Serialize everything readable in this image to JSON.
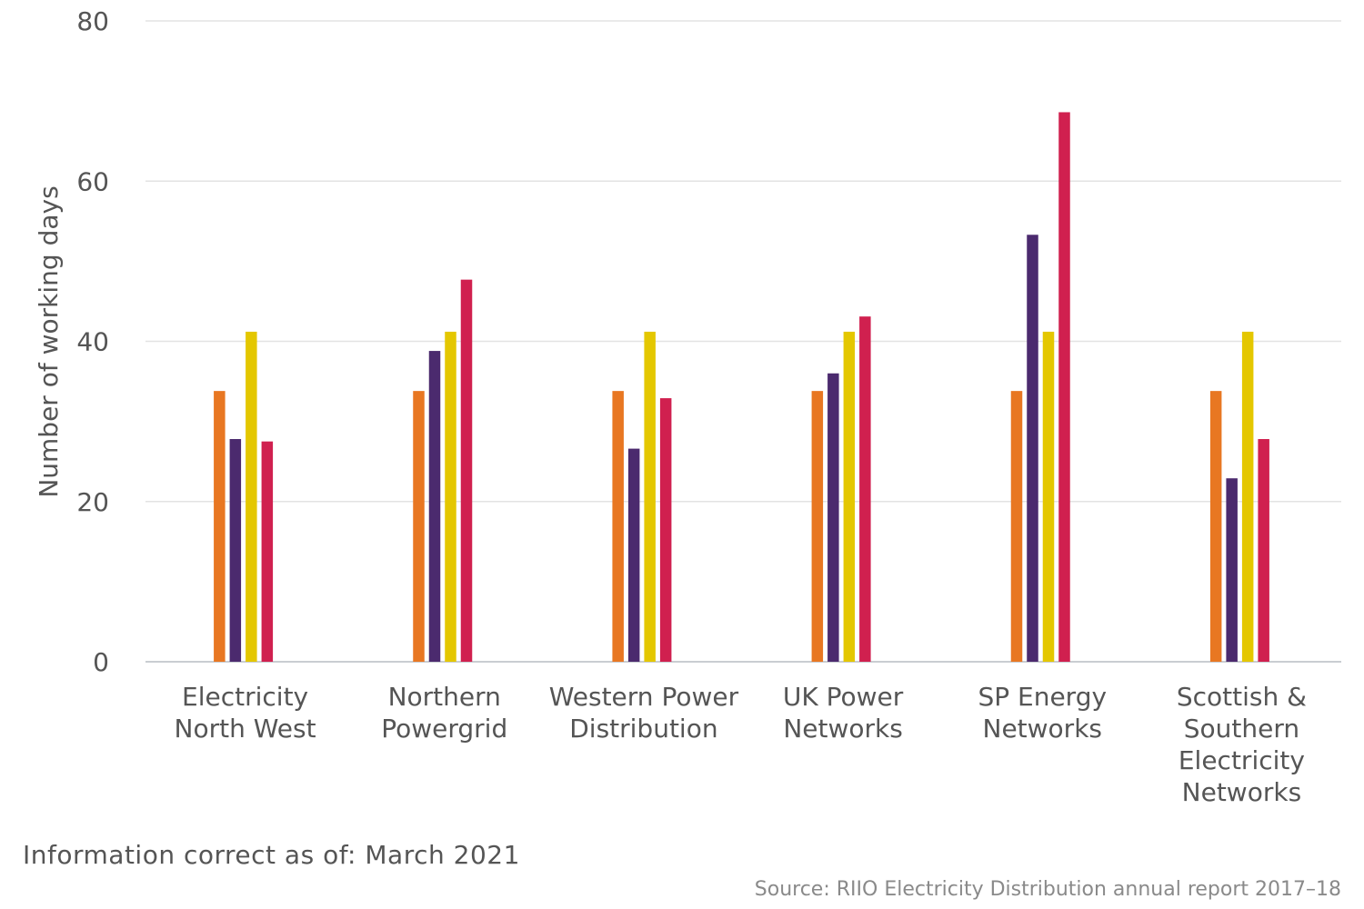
{
  "chart_data": {
    "type": "bar",
    "title": "",
    "xlabel": "",
    "ylabel": "Number of working days",
    "ylim": [
      0,
      80
    ],
    "yticks": [
      0,
      20,
      40,
      60,
      80
    ],
    "grid": true,
    "legend": "none",
    "categories": [
      [
        "Electricity",
        "North West"
      ],
      [
        "Northern",
        "Powergrid"
      ],
      [
        "Western Power",
        "Distribution"
      ],
      [
        "UK Power",
        "Networks"
      ],
      [
        "SP Energy",
        "Networks"
      ],
      [
        "Scottish &",
        "Southern",
        "Electricity",
        "Networks"
      ]
    ],
    "series": [
      {
        "color": "#E87722",
        "values": [
          33.8,
          33.8,
          33.8,
          33.8,
          33.8,
          33.8
        ]
      },
      {
        "color": "#4B2A6E",
        "values": [
          27.8,
          38.8,
          26.6,
          36.0,
          53.3,
          22.9
        ]
      },
      {
        "color": "#E4C700",
        "values": [
          41.2,
          41.2,
          41.2,
          41.2,
          41.2,
          41.2
        ]
      },
      {
        "color": "#D0204F",
        "values": [
          27.5,
          47.7,
          32.9,
          43.1,
          68.6,
          27.8
        ]
      }
    ]
  },
  "footnote": "Information correct as of: March 2021",
  "source": "Source: RIIO Electricity Distribution annual report 2017–18"
}
